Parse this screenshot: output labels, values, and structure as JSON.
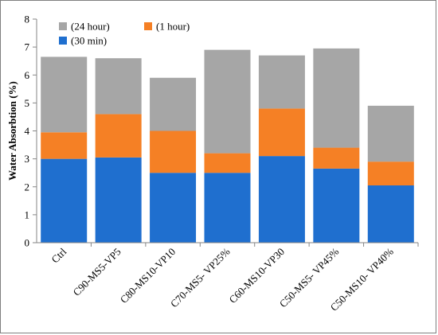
{
  "chart_data": {
    "type": "bar",
    "stacked": true,
    "categories": [
      "Ctrl",
      "C90-MS5-VP5",
      "C80-MS10-VP10",
      "C70-MS5- VP25%",
      "C60-MS10-VP30",
      "C50-MS5- VP45%",
      "C50-MS10- VP40%"
    ],
    "series": [
      {
        "name": "(30 min)",
        "color": "#1f6fcf",
        "values": [
          3.0,
          3.05,
          2.5,
          2.5,
          3.1,
          2.65,
          2.05
        ]
      },
      {
        "name": "(1 hour)",
        "color": "#f58025",
        "values": [
          0.95,
          1.55,
          1.5,
          0.7,
          1.7,
          0.75,
          0.85
        ]
      },
      {
        "name": "(24 hour)",
        "color": "#a6a6a6",
        "values": [
          2.7,
          2.0,
          1.9,
          3.7,
          1.9,
          3.55,
          2.0
        ]
      }
    ],
    "legend_order": [
      "(24 hour)",
      "(1 hour)",
      "(30 min)"
    ],
    "legend_position": "top-left",
    "ylabel": "Water Absorbtion (%)",
    "xlabel": "",
    "ylim": [
      0,
      8
    ],
    "yticks": [
      "0",
      "1",
      "2",
      "3",
      "4",
      "5",
      "6",
      "7",
      "8"
    ],
    "grid": false
  }
}
